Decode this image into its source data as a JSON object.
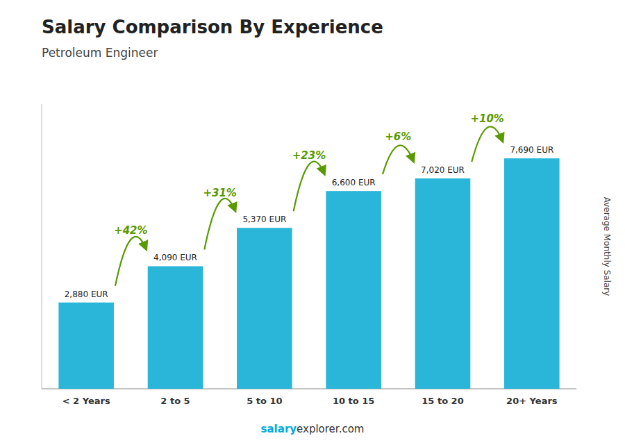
{
  "chart_data": {
    "type": "bar",
    "title": "Salary Comparison By Experience",
    "subtitle": "Petroleum Engineer",
    "y_label": "Average Monthly Salary",
    "categories": [
      "< 2 Years",
      "2 to 5",
      "5 to 10",
      "10 to 15",
      "15 to 20",
      "20+ Years"
    ],
    "values": [
      2880,
      4090,
      5370,
      6600,
      7020,
      7690
    ],
    "value_labels": [
      "2,880 EUR",
      "4,090 EUR",
      "5,370 EUR",
      "6,600 EUR",
      "7,020 EUR",
      "7,690 EUR"
    ],
    "data_labels": true,
    "color": "#29b6d8",
    "ylim": [
      0,
      9500
    ],
    "tick_labels": "x",
    "grid": false,
    "annotations": [
      {
        "text": "+42%",
        "color": "#5a9a00"
      },
      {
        "text": "+31%",
        "color": "#5a9a00"
      },
      {
        "text": "+23%",
        "color": "#5a9a00"
      },
      {
        "text": "+6%",
        "color": "#5a9a00"
      },
      {
        "text": "+10%",
        "color": "#5a9a00"
      }
    ],
    "footer": [
      {
        "text": "salary",
        "color": "#00aadd"
      },
      {
        "text": "explorer.com",
        "color": "#333333"
      }
    ]
  }
}
